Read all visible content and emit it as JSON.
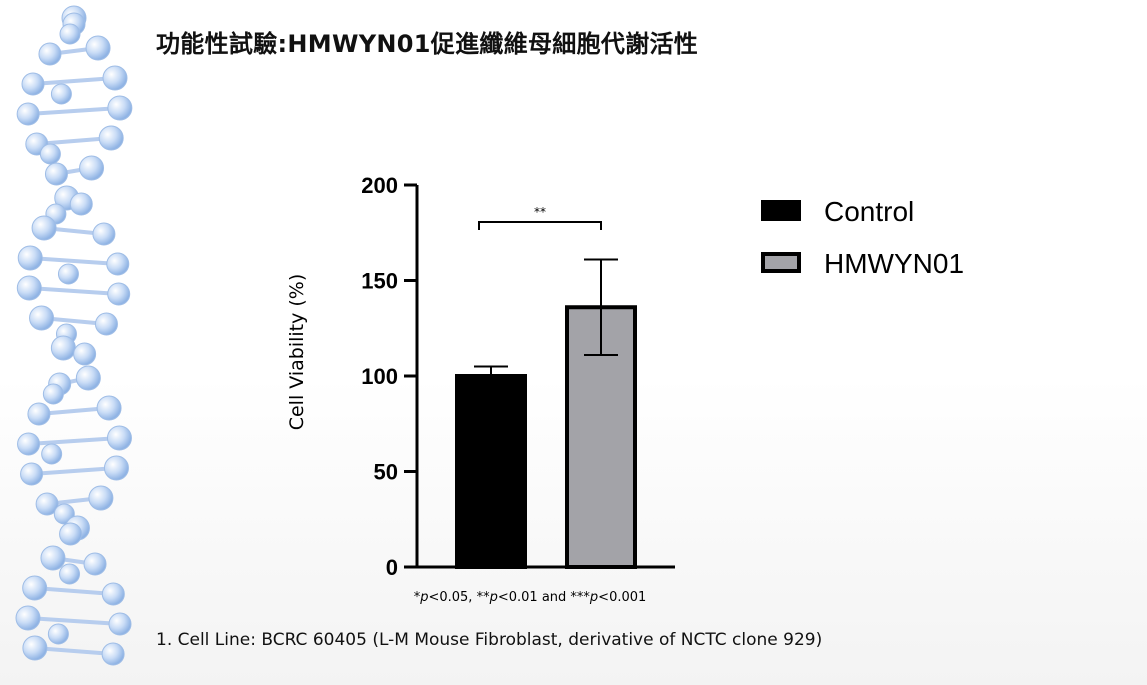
{
  "slide": {
    "title": "功能性試驗:HMWYN01促進纖維母細胞代謝活性",
    "footnote": "1. Cell Line: BCRC 60405 (L-M Mouse Fibroblast, derivative of NCTC clone 929)"
  },
  "chart_data": {
    "type": "bar",
    "categories": [
      "Control",
      "HMWYN01"
    ],
    "values": [
      100,
      136
    ],
    "errors": [
      5,
      25
    ],
    "colors": [
      "#000000",
      "#a3a3a8"
    ],
    "ylabel": "Cell Viability (%)",
    "ylim": [
      0,
      200
    ],
    "yticks": [
      0,
      50,
      100,
      150,
      200
    ],
    "legend": {
      "position": "right",
      "items": [
        {
          "label": "Control",
          "color": "#000000"
        },
        {
          "label": "HMWYN01",
          "color": "#a3a3a8"
        }
      ]
    },
    "significance": {
      "between": [
        0,
        1
      ],
      "label": "**"
    },
    "pvalue_note": {
      "p1": "*",
      "p1b": "p",
      "p1c": "<0.05, ",
      "p2": "**",
      "p2b": "p",
      "p2c": "<0.01 and ",
      "p3": "***",
      "p3b": "p",
      "p3c": "<0.001"
    },
    "grid": false
  }
}
